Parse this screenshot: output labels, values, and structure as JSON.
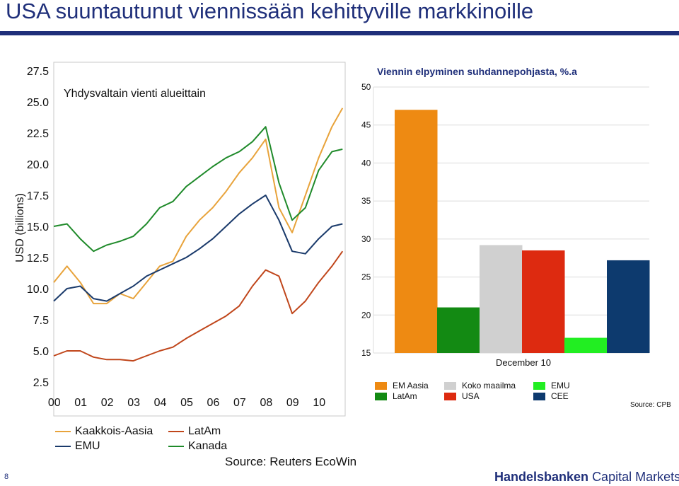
{
  "page": {
    "title": "USA suuntautunut viennissään kehittyville markkinoille",
    "page_number": "8",
    "brand_name": "Handelsbanken",
    "brand_suffix": "Capital Markets"
  },
  "colors": {
    "title_blue": "#1f2f7a",
    "kaakkois_aasia": "#e8a33b",
    "latam": "#c0461b",
    "emu": "#1a3a6b",
    "kanada": "#1f8a2a",
    "bar_em_aasia": "#ee8a12",
    "bar_latam": "#138a13",
    "bar_koko_maailma": "#d0d0d0",
    "bar_usa": "#dd2a10",
    "bar_emu": "#22ee22",
    "bar_cee": "#0d3a6e"
  },
  "chart_data": [
    {
      "type": "line",
      "title": "Yhdysvaltain vienti alueittain",
      "ylabel": "USD (billions)",
      "xlabel": "",
      "x_tick_labels": [
        "00",
        "01",
        "02",
        "03",
        "04",
        "05",
        "06",
        "07",
        "08",
        "09",
        "10"
      ],
      "y_tick_labels": [
        "2.5",
        "5.0",
        "7.5",
        "10.0",
        "12.5",
        "15.0",
        "17.5",
        "20.0",
        "22.5",
        "25.0",
        "27.5"
      ],
      "ylim": [
        2.5,
        27.5
      ],
      "xlim": [
        2000.0,
        2011.0
      ],
      "grid": false,
      "legend_position": "bottom",
      "source": "Source: Reuters EcoWin",
      "series": [
        {
          "name": "Kaakkois-Aasia",
          "x": [
            2000.0,
            2000.5,
            2001.0,
            2001.5,
            2002.0,
            2002.5,
            2003.0,
            2003.5,
            2004.0,
            2004.5,
            2005.0,
            2005.5,
            2006.0,
            2006.5,
            2007.0,
            2007.5,
            2008.0,
            2008.5,
            2009.0,
            2009.5,
            2010.0,
            2010.5,
            2010.9
          ],
          "y": [
            10.5,
            11.8,
            10.5,
            8.8,
            8.8,
            9.6,
            9.2,
            10.5,
            11.8,
            12.2,
            14.2,
            15.5,
            16.5,
            17.8,
            19.3,
            20.5,
            22.0,
            16.5,
            14.5,
            17.5,
            20.5,
            23.0,
            24.5
          ]
        },
        {
          "name": "LatAm",
          "x": [
            2000.0,
            2000.5,
            2001.0,
            2001.5,
            2002.0,
            2002.5,
            2003.0,
            2003.5,
            2004.0,
            2004.5,
            2005.0,
            2005.5,
            2006.0,
            2006.5,
            2007.0,
            2007.5,
            2008.0,
            2008.5,
            2009.0,
            2009.5,
            2010.0,
            2010.5,
            2010.9
          ],
          "y": [
            4.6,
            5.0,
            5.0,
            4.5,
            4.3,
            4.3,
            4.2,
            4.6,
            5.0,
            5.3,
            6.0,
            6.6,
            7.2,
            7.8,
            8.6,
            10.2,
            11.5,
            11.0,
            8.0,
            9.0,
            10.5,
            11.8,
            13.0
          ]
        },
        {
          "name": "EMU",
          "x": [
            2000.0,
            2000.5,
            2001.0,
            2001.5,
            2002.0,
            2002.5,
            2003.0,
            2003.5,
            2004.0,
            2004.5,
            2005.0,
            2005.5,
            2006.0,
            2006.5,
            2007.0,
            2007.5,
            2008.0,
            2008.5,
            2009.0,
            2009.5,
            2010.0,
            2010.5,
            2010.9
          ],
          "y": [
            9.0,
            10.0,
            10.2,
            9.2,
            9.0,
            9.6,
            10.2,
            11.0,
            11.5,
            12.0,
            12.5,
            13.2,
            14.0,
            15.0,
            16.0,
            16.8,
            17.5,
            15.5,
            13.0,
            12.8,
            14.0,
            15.0,
            15.2
          ]
        },
        {
          "name": "Kanada",
          "x": [
            2000.0,
            2000.5,
            2001.0,
            2001.5,
            2002.0,
            2002.5,
            2003.0,
            2003.5,
            2004.0,
            2004.5,
            2005.0,
            2005.5,
            2006.0,
            2006.5,
            2007.0,
            2007.5,
            2008.0,
            2008.5,
            2009.0,
            2009.5,
            2010.0,
            2010.5,
            2010.9
          ],
          "y": [
            15.0,
            15.2,
            14.0,
            13.0,
            13.5,
            13.8,
            14.2,
            15.2,
            16.5,
            17.0,
            18.2,
            19.0,
            19.8,
            20.5,
            21.0,
            21.8,
            23.0,
            18.5,
            15.5,
            16.5,
            19.5,
            21.0,
            21.2
          ]
        }
      ]
    },
    {
      "type": "bar",
      "title": "Viennin elpyminen suhdannepohjasta, %.a",
      "categories": [
        "EM Aasia",
        "LatAm",
        "Koko maailma",
        "USA",
        "EMU",
        "CEE"
      ],
      "category_label": "December 10",
      "values": [
        47,
        21,
        29.2,
        28.5,
        17,
        27.2
      ],
      "ylim": [
        15,
        50
      ],
      "y_tick_labels": [
        "15",
        "20",
        "25",
        "30",
        "35",
        "40",
        "45",
        "50"
      ],
      "grid": true,
      "legend_position": "bottom",
      "source": "Source: CPB"
    }
  ]
}
